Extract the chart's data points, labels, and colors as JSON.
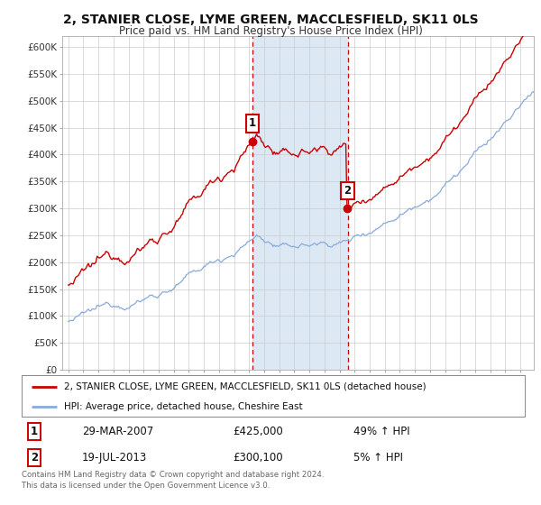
{
  "title": "2, STANIER CLOSE, LYME GREEN, MACCLESFIELD, SK11 0LS",
  "subtitle": "Price paid vs. HM Land Registry's House Price Index (HPI)",
  "legend_entry1": "2, STANIER CLOSE, LYME GREEN, MACCLESFIELD, SK11 0LS (detached house)",
  "legend_entry2": "HPI: Average price, detached house, Cheshire East",
  "transaction1_date": "29-MAR-2007",
  "transaction1_price": "£425,000",
  "transaction1_hpi": "49% ↑ HPI",
  "transaction2_date": "19-JUL-2013",
  "transaction2_price": "£300,100",
  "transaction2_hpi": "5% ↑ HPI",
  "footer": "Contains HM Land Registry data © Crown copyright and database right 2024.\nThis data is licensed under the Open Government Licence v3.0.",
  "transaction1_year": 2007.23,
  "transaction2_year": 2013.54,
  "transaction1_value": 425000,
  "transaction2_value": 300100,
  "highlight_color": "#dce9f5",
  "line_color_property": "#cc0000",
  "line_color_hpi": "#88aadd",
  "dashed_line_color": "#cc0000",
  "ylim": [
    0,
    620000
  ],
  "yticks": [
    0,
    50000,
    100000,
    150000,
    200000,
    250000,
    300000,
    350000,
    400000,
    450000,
    500000,
    550000,
    600000
  ],
  "ytick_labels": [
    "£0",
    "£50K",
    "£100K",
    "£150K",
    "£200K",
    "£250K",
    "£300K",
    "£350K",
    "£400K",
    "£450K",
    "£500K",
    "£550K",
    "£600K"
  ],
  "background_color": "#ffffff",
  "grid_color": "#cccccc"
}
